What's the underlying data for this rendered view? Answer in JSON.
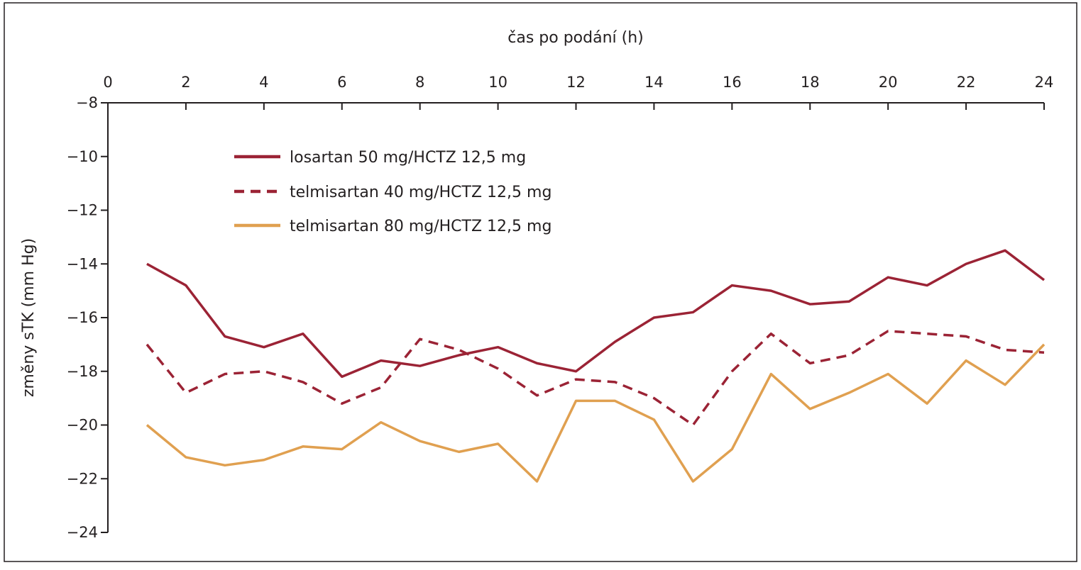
{
  "chart_data": {
    "type": "line",
    "title": "",
    "xlabel": "čas po podání (h)",
    "ylabel": "změny sTK (mm Hg)",
    "xlim": [
      0,
      24
    ],
    "ylim": [
      -24,
      -8
    ],
    "x_ticks": [
      "0",
      "2",
      "4",
      "6",
      "8",
      "10",
      "12",
      "14",
      "16",
      "18",
      "20",
      "22",
      "24"
    ],
    "y_ticks": [
      "−8",
      "−10",
      "−12",
      "−14",
      "−16",
      "−18",
      "−20",
      "−22",
      "−24"
    ],
    "x_axis_position": "top",
    "grid": false,
    "legend_position": "top-left",
    "x": [
      1,
      2,
      3,
      4,
      5,
      6,
      7,
      8,
      9,
      10,
      11,
      12,
      13,
      14,
      15,
      16,
      17,
      18,
      19,
      20,
      21,
      22,
      23,
      24
    ],
    "series": [
      {
        "name": "losartan 50 mg/HCTZ 12,5 mg",
        "color": "#9b2335",
        "style": "solid",
        "values": [
          -14.0,
          -14.8,
          -16.7,
          -17.1,
          -16.6,
          -18.2,
          -17.6,
          -17.8,
          -17.4,
          -17.1,
          -17.7,
          -18.0,
          -16.9,
          -16.0,
          -15.8,
          -14.8,
          -15.0,
          -15.5,
          -15.4,
          -14.5,
          -14.8,
          -14.0,
          -13.5,
          -14.6
        ]
      },
      {
        "name": "telmisartan 40 mg/HCTZ 12,5 mg",
        "color": "#9b2335",
        "style": "dashed",
        "values": [
          -17.0,
          -18.8,
          -18.1,
          -18.0,
          -18.4,
          -19.2,
          -18.6,
          -16.8,
          -17.2,
          -17.9,
          -18.9,
          -18.3,
          -18.4,
          -19.0,
          -20.0,
          -18.0,
          -16.6,
          -17.7,
          -17.4,
          -16.5,
          -16.6,
          -16.7,
          -17.2,
          -17.3
        ]
      },
      {
        "name": "telmisartan 80 mg/HCTZ 12,5 mg",
        "color": "#e0a050",
        "style": "solid",
        "values": [
          -20.0,
          -21.2,
          -21.5,
          -21.3,
          -20.8,
          -20.9,
          -19.9,
          -20.6,
          -21.0,
          -20.7,
          -22.1,
          -19.1,
          -19.1,
          -19.8,
          -22.1,
          -20.9,
          -18.1,
          -19.4,
          -18.8,
          -18.1,
          -19.2,
          -17.6,
          -18.5,
          -17.0
        ]
      }
    ]
  }
}
